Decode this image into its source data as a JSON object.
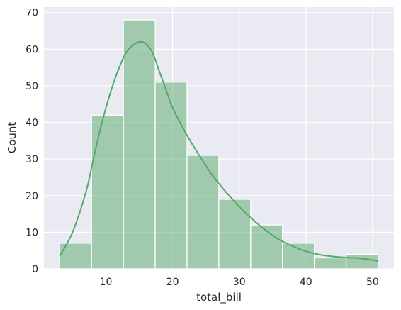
{
  "chart_data": {
    "type": "bar",
    "subtype": "histogram-with-kde",
    "bins": [
      {
        "x0": 3.07,
        "x1": 7.844,
        "count": 7
      },
      {
        "x0": 7.844,
        "x1": 12.618,
        "count": 42
      },
      {
        "x0": 12.618,
        "x1": 17.392,
        "count": 68
      },
      {
        "x0": 17.392,
        "x1": 22.166,
        "count": 51
      },
      {
        "x0": 22.166,
        "x1": 26.94,
        "count": 31
      },
      {
        "x0": 26.94,
        "x1": 31.714,
        "count": 19
      },
      {
        "x0": 31.714,
        "x1": 36.488,
        "count": 12
      },
      {
        "x0": 36.488,
        "x1": 41.262,
        "count": 7
      },
      {
        "x0": 41.262,
        "x1": 46.036,
        "count": 3
      },
      {
        "x0": 46.036,
        "x1": 50.81,
        "count": 4
      }
    ],
    "kde": {
      "x": [
        3.07,
        5,
        7,
        8,
        9,
        10,
        11,
        12,
        13,
        14,
        15,
        16,
        17,
        18,
        19,
        20,
        22,
        24,
        26,
        28,
        30,
        32,
        34,
        36,
        38,
        40,
        42,
        44,
        46,
        48,
        50,
        50.81
      ],
      "y": [
        3.5,
        10,
        21,
        29,
        37,
        44,
        50,
        55,
        59,
        61,
        62,
        61.5,
        59,
        54,
        49,
        44,
        37,
        31,
        25.5,
        21,
        17,
        13.5,
        10.5,
        8,
        6.2,
        4.8,
        3.9,
        3.4,
        3.1,
        2.9,
        2.4,
        2.1
      ]
    },
    "xlabel": "total_bill",
    "ylabel": "Count",
    "xlim": [
      0.7,
      53.2
    ],
    "ylim": [
      0,
      71.5
    ],
    "xticks": [
      10,
      20,
      30,
      40,
      50
    ],
    "yticks": [
      0,
      10,
      20,
      30,
      40,
      50,
      60,
      70
    ],
    "grid": true,
    "colors": {
      "background": "#eaeaf2",
      "grid": "#ffffff",
      "bar_fill": "#55a868",
      "bar_fill_opacity": 0.5,
      "bar_edge": "#ffffff",
      "kde_line": "#55a868",
      "text": "#262626"
    }
  }
}
